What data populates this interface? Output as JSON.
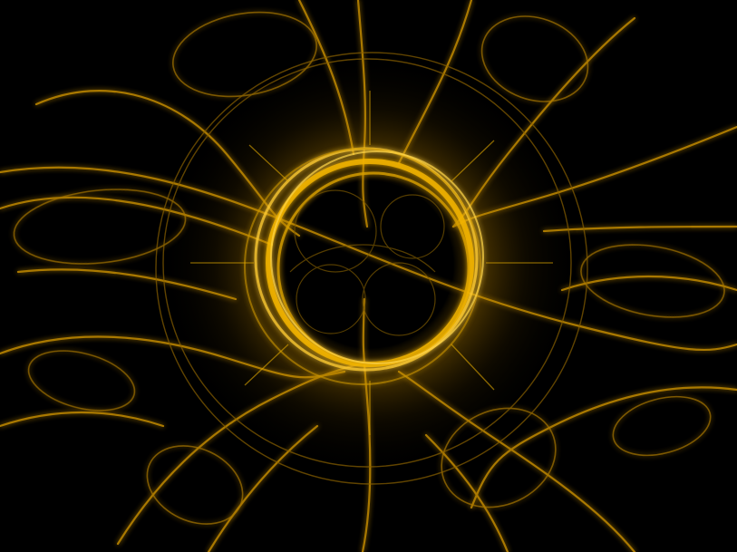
{
  "image": {
    "background_color": "#000000",
    "glow_color": "#f2b400",
    "highlight_color": "#ffd54a",
    "dim_color": "#6a4a00"
  }
}
